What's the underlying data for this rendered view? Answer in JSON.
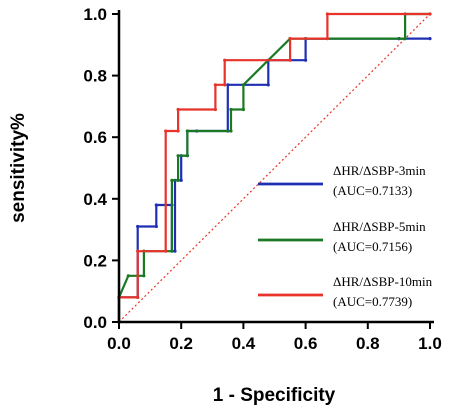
{
  "chart_data": {
    "type": "line",
    "xlabel": "1 - Specificity",
    "ylabel": "sensitivity%",
    "xlim": [
      0,
      1
    ],
    "ylim": [
      0,
      1
    ],
    "xticks": [
      "0.0",
      "0.2",
      "0.4",
      "0.6",
      "0.8",
      "1.0"
    ],
    "yticks": [
      "0.0",
      "0.2",
      "0.4",
      "0.6",
      "0.8",
      "1.0"
    ],
    "legend_position": "right",
    "reference_line": {
      "color": "#e8332b",
      "style": "dotted",
      "from": [
        0,
        0
      ],
      "to": [
        1,
        1
      ]
    },
    "series": [
      {
        "name": "ΔHR/ΔSBP-3min",
        "auc": "(AUC=0.7133)",
        "color": "#1f2fb4",
        "x": [
          0,
          0,
          0.06,
          0.06,
          0.12,
          0.12,
          0.17,
          0.17,
          0.18,
          0.18,
          0.2,
          0.2,
          0.22,
          0.22,
          0.25,
          0.25,
          0.35,
          0.35,
          0.48,
          0.48,
          0.6,
          0.6,
          0.9,
          0.9,
          1
        ],
        "y": [
          0,
          0.08,
          0.08,
          0.31,
          0.31,
          0.38,
          0.38,
          0.23,
          0.23,
          0.46,
          0.46,
          0.54,
          0.54,
          0.62,
          0.62,
          0.62,
          0.62,
          0.77,
          0.77,
          0.85,
          0.85,
          0.92,
          0.92,
          0.92,
          0.92
        ]
      },
      {
        "name": "ΔHR/ΔSBP-5min",
        "auc": "(AUC=0.7156)",
        "color": "#1a7a23",
        "x": [
          0,
          0,
          0.03,
          0.08,
          0.08,
          0.17,
          0.17,
          0.19,
          0.19,
          0.22,
          0.22,
          0.36,
          0.36,
          0.4,
          0.4,
          0.55,
          0.6,
          0.92,
          0.92,
          1
        ],
        "y": [
          0,
          0.08,
          0.15,
          0.15,
          0.23,
          0.23,
          0.46,
          0.46,
          0.54,
          0.54,
          0.62,
          0.62,
          0.69,
          0.69,
          0.77,
          0.92,
          0.92,
          0.92,
          1.0,
          1.0
        ]
      },
      {
        "name": "ΔHR/ΔSBP-10min",
        "auc": "(AUC=0.7739)",
        "color": "#e8332b",
        "x": [
          0,
          0,
          0.06,
          0.06,
          0.15,
          0.15,
          0.19,
          0.19,
          0.31,
          0.31,
          0.34,
          0.34,
          0.55,
          0.55,
          0.67,
          0.67,
          1
        ],
        "y": [
          0,
          0.08,
          0.08,
          0.23,
          0.23,
          0.62,
          0.62,
          0.69,
          0.69,
          0.77,
          0.77,
          0.85,
          0.85,
          0.92,
          0.92,
          1.0,
          1.0
        ]
      }
    ]
  }
}
